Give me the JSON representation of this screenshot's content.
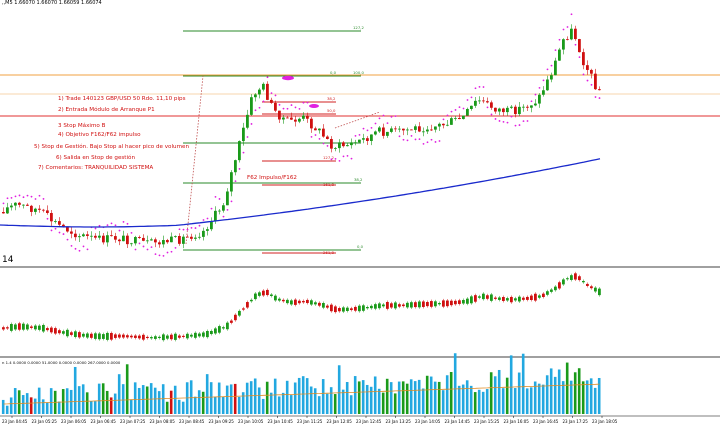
{
  "header": {
    "text": ",,M5  1.66070 1.66070 1.66059 1.66074"
  },
  "annotations": [
    {
      "text": "1) Trade 140123 GBP/USD 50 Rdo. 11,10 pips"
    },
    {
      "text": "2) Entrada Módulo de Arranque P1"
    },
    {
      "text": "3 Stop Máximo B"
    },
    {
      "text": "4) Objetivo F162/F62 impulso"
    },
    {
      "text": "5) Stop de Gestión. Bajo Stop al hacer pico de volumen"
    },
    {
      "text": "6) Salida en Stop de gestión"
    },
    {
      "text": "7) Comentarios: TRANQUILIDAD SISTEMA"
    }
  ],
  "f62_label": "F62 Impulso/F162",
  "fib_levels": {
    "upper": [
      "127,2",
      "0,0",
      "100,0",
      "38,2",
      "50,0"
    ],
    "lower": [
      "127,2",
      "161,8",
      "38,2",
      "0,0",
      "261,8"
    ]
  },
  "left_marker": "14",
  "volume_header": "n 1.4  0.0000  0.0000  51.0000  0.0000  0.0000  267.0000  0.0000",
  "time_labels": [
    "23 Jan 04:45",
    "23 Jan 05:25",
    "23 Jan 06:05",
    "23 Jan 06:45",
    "23 Jan 07:25",
    "23 Jan 08:05",
    "23 Jan 08:45",
    "23 Jan 09:25",
    "23 Jan 10:05",
    "23 Jan 10:45",
    "23 Jan 11:25",
    "23 Jan 12:05",
    "23 Jan 12:45",
    "23 Jan 13:25",
    "23 Jan 14:05",
    "23 Jan 14:45",
    "23 Jan 15:25",
    "23 Jan 16:05",
    "23 Jan 16:45",
    "23 Jan 17:25",
    "23 Jan 18:05"
  ],
  "colors": {
    "bull": "#1a9a1a",
    "bear": "#d01010",
    "ma": "#1a2acc",
    "sar": "#e020e0",
    "volume": "#22a8e0",
    "volume_high": "#1a9a1a",
    "volume_low": "#d01010",
    "volume_avg": "#e08a20",
    "fib_green": "#2a8a2a",
    "fib_red": "#d02020",
    "orange_line": "#f0a040",
    "red_line": "#e03030"
  },
  "chart_data": {
    "type": "candlestick",
    "note_series": [
      "price",
      "moving_average",
      "parabolic_sar",
      "oscillator",
      "volume"
    ],
    "price_trend": [
      {
        "x": "23 Jan 04:45",
        "close": 1.6555
      },
      {
        "x": "23 Jan 06:05",
        "close": 1.655
      },
      {
        "x": "23 Jan 07:25",
        "close": 1.6548
      },
      {
        "x": "23 Jan 08:45",
        "close": 1.6552
      },
      {
        "x": "23 Jan 09:25",
        "close": 1.6575
      },
      {
        "x": "23 Jan 10:05",
        "close": 1.66
      },
      {
        "x": "23 Jan 11:25",
        "close": 1.6594
      },
      {
        "x": "23 Jan 12:45",
        "close": 1.6589
      },
      {
        "x": "23 Jan 14:05",
        "close": 1.6592
      },
      {
        "x": "23 Jan 15:25",
        "close": 1.66
      },
      {
        "x": "23 Jan 16:45",
        "close": 1.6606
      },
      {
        "x": "23 Jan 17:25",
        "close": 1.6618
      },
      {
        "x": "23 Jan 18:05",
        "close": 1.6607
      }
    ]
  }
}
